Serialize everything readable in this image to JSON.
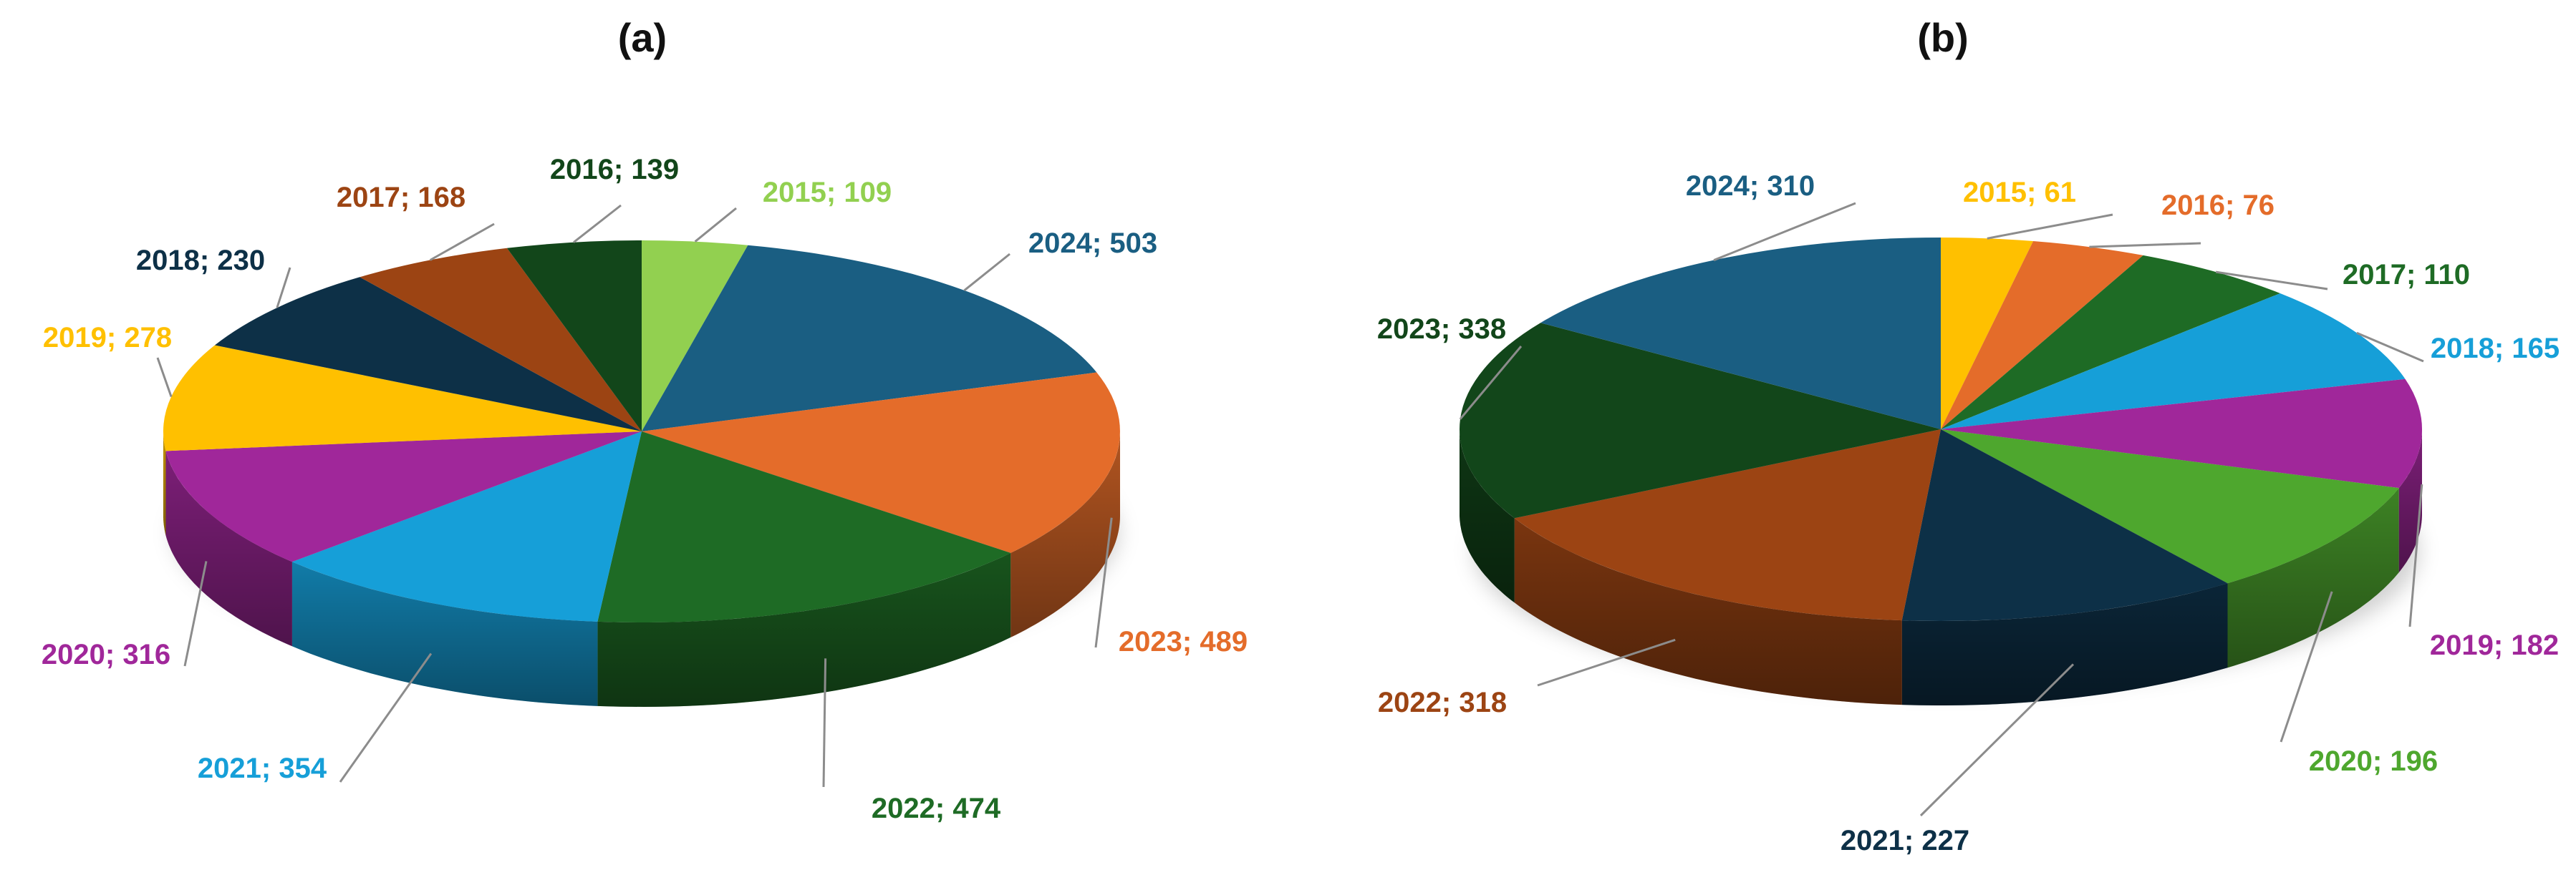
{
  "chart_data": [
    {
      "type": "pie",
      "title": "(a)",
      "slices": [
        {
          "year": "2015",
          "value": 109,
          "label": "2015; 109",
          "color": "#92d050"
        },
        {
          "year": "2024",
          "value": 503,
          "label": "2024; 503",
          "color": "#1a5e82"
        },
        {
          "year": "2023",
          "value": 489,
          "label": "2023; 489",
          "color": "#e46c2a"
        },
        {
          "year": "2022",
          "value": 474,
          "label": "2022; 474",
          "color": "#1e6b25"
        },
        {
          "year": "2021",
          "value": 354,
          "label": "2021; 354",
          "color": "#169fd8"
        },
        {
          "year": "2020",
          "value": 316,
          "label": "2020; 316",
          "color": "#a0279a"
        },
        {
          "year": "2019",
          "value": 278,
          "label": "2019; 278",
          "color": "#ffc000"
        },
        {
          "year": "2018",
          "value": 230,
          "label": "2018; 230",
          "color": "#0d3047"
        },
        {
          "year": "2017",
          "value": 168,
          "label": "2017; 168",
          "color": "#9c4413"
        },
        {
          "year": "2016",
          "value": 139,
          "label": "2016; 139",
          "color": "#12461a"
        }
      ]
    },
    {
      "type": "pie",
      "title": "(b)",
      "slices": [
        {
          "year": "2015",
          "value": 61,
          "label": "2015; 61",
          "color": "#ffc000"
        },
        {
          "year": "2016",
          "value": 76,
          "label": "2016; 76",
          "color": "#e46c2a"
        },
        {
          "year": "2017",
          "value": 110,
          "label": "2017; 110",
          "color": "#1e6b25"
        },
        {
          "year": "2018",
          "value": 165,
          "label": "2018; 165",
          "color": "#169fd8"
        },
        {
          "year": "2019",
          "value": 182,
          "label": "2019; 182",
          "color": "#a0279a"
        },
        {
          "year": "2020",
          "value": 196,
          "label": "2020; 196",
          "color": "#4ea72e"
        },
        {
          "year": "2021",
          "value": 227,
          "label": "2021; 227",
          "color": "#0d3047"
        },
        {
          "year": "2022",
          "value": 318,
          "label": "2022; 318",
          "color": "#9c4413"
        },
        {
          "year": "2023",
          "value": 338,
          "label": "2023; 338",
          "color": "#12461a"
        },
        {
          "year": "2024",
          "value": 310,
          "label": "2024; 310",
          "color": "#1a5e82"
        }
      ]
    }
  ]
}
